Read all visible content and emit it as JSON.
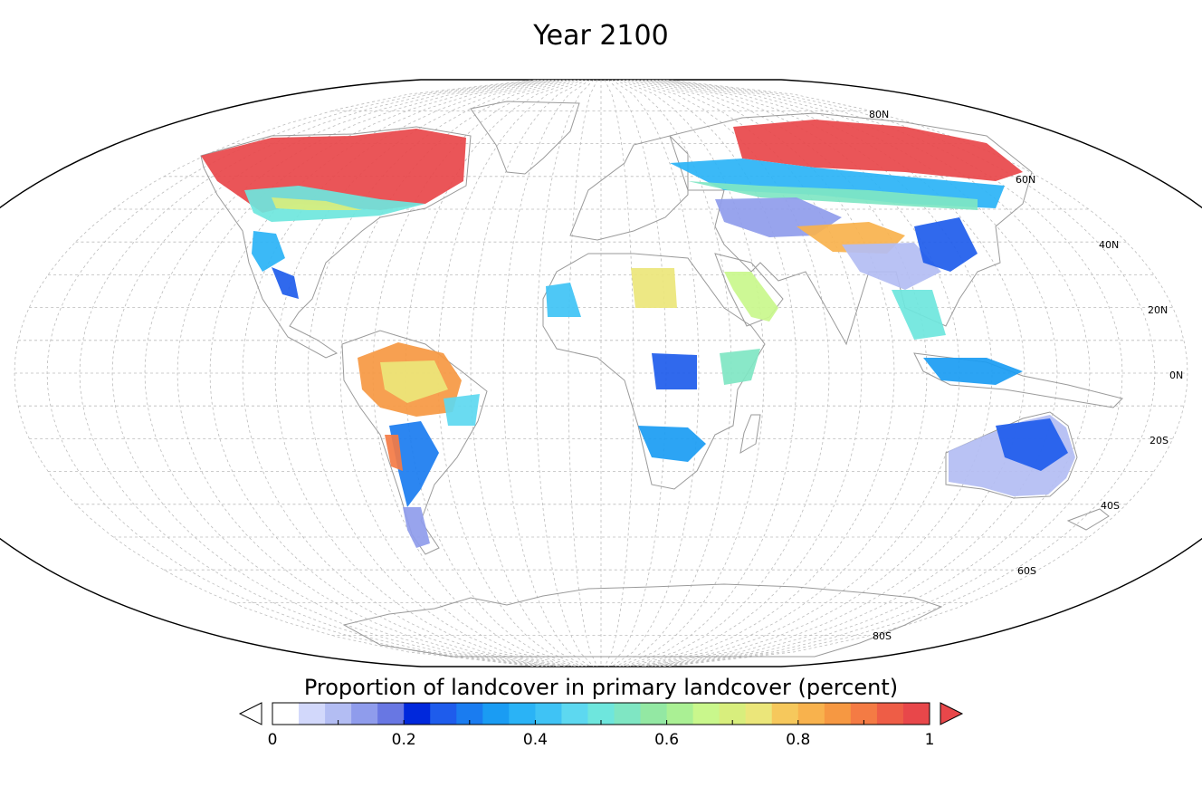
{
  "title": "Year 2100",
  "colorbar": {
    "title": "Proportion of landcover in primary landcover (percent)",
    "ticks": [
      {
        "value": 0,
        "label": "0"
      },
      {
        "value": 0.2,
        "label": "0.2"
      },
      {
        "value": 0.4,
        "label": "0.4"
      },
      {
        "value": 0.6,
        "label": "0.6"
      },
      {
        "value": 0.8,
        "label": "0.8"
      },
      {
        "value": 1,
        "label": "1"
      }
    ],
    "range": [
      0,
      1
    ],
    "extend_low_color": "#ffffff",
    "extend_high_color": "#e8474a",
    "colors": [
      "#ffffff",
      "#d2d8fb",
      "#b3bdf3",
      "#8f9cec",
      "#6877e3",
      "#0028dc",
      "#1e5cec",
      "#1a7cf0",
      "#1a9cf3",
      "#2ab3f6",
      "#3fc3f5",
      "#5dd8f0",
      "#6ee6dd",
      "#7fe6c3",
      "#93e8a3",
      "#aaf094",
      "#c9f78c",
      "#d8ee7d",
      "#ebe67a",
      "#f6c85c",
      "#f8b24d",
      "#f69842",
      "#f47b44",
      "#ee5d46",
      "#e8474a"
    ]
  },
  "latitude_labels": [
    {
      "value": 80,
      "label": "80N"
    },
    {
      "value": 60,
      "label": "60N"
    },
    {
      "value": 40,
      "label": "40N"
    },
    {
      "value": 20,
      "label": "20N"
    },
    {
      "value": 0,
      "label": "0N"
    },
    {
      "value": -20,
      "label": "20S"
    },
    {
      "value": -40,
      "label": "40S"
    },
    {
      "value": -60,
      "label": "60S"
    },
    {
      "value": -80,
      "label": "80S"
    }
  ],
  "projection": "Mollweide-like world map",
  "colors": {
    "land_outline": "#9a9a9a",
    "grid": "#bcbcbc",
    "frame": "#000000"
  }
}
